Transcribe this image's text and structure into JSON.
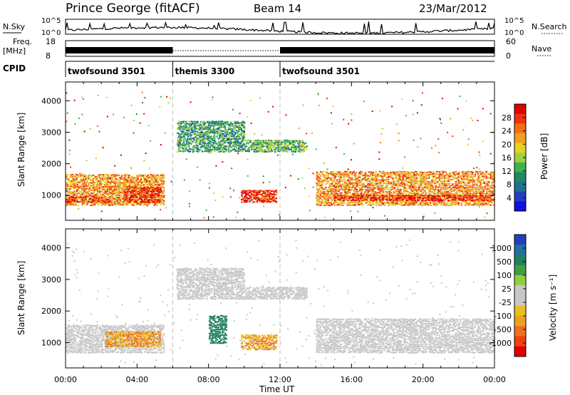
{
  "header": {
    "station": "Prince George (fitACF)",
    "beam": "Beam 14",
    "date": "23/Mar/2012"
  },
  "strip_labels": {
    "nsky": "N.Sky",
    "nsky_ticks": [
      "10^5",
      "10^0"
    ],
    "nsearch": "N.Search",
    "nsearch_ticks": [
      "10^5",
      "10^0"
    ],
    "freq": [
      "Freq.",
      "[MHz]"
    ],
    "freq_ticks": [
      "18",
      "8"
    ],
    "nave": "Nave",
    "nave_ticks": [
      "60",
      "0"
    ],
    "cpid": "CPID"
  },
  "cpid_segments": [
    {
      "label": "twofsound 3501",
      "start": 0,
      "end": 6
    },
    {
      "label": "themis 3300",
      "start": 6,
      "end": 12
    },
    {
      "label": "twofsound 3501",
      "start": 12,
      "end": 24
    }
  ],
  "power_colorbar": {
    "label": "Power [dB]",
    "ticks": [
      "28",
      "24",
      "20",
      "16",
      "12",
      "8",
      "4"
    ],
    "colors": [
      "#e00000",
      "#f03010",
      "#f07010",
      "#f0a020",
      "#e8d020",
      "#a0d040",
      "#40b050",
      "#208860",
      "#207090",
      "#2040c0",
      "#1010e0"
    ]
  },
  "velocity_colorbar": {
    "label": "Velocity [m s⁻¹]",
    "ticks": [
      "1000",
      "500",
      "100",
      "25",
      "-25",
      "-100",
      "-500",
      "-1000"
    ],
    "colors": [
      "#2040c0",
      "#2070a0",
      "#208060",
      "#40a040",
      "#90d040",
      "#c8c8c8",
      "#c8c8c8",
      "#e8c020",
      "#f0a020",
      "#f07020",
      "#f04010",
      "#e00000"
    ]
  },
  "chart_data": [
    {
      "type": "heatmap",
      "title": "",
      "xlabel": "Time UT",
      "ylabel": "Slant Range [km]",
      "xlim": [
        0,
        24
      ],
      "ylim": [
        200,
        4600
      ],
      "x_ticks": [
        "00:00",
        "04:00",
        "08:00",
        "12:00",
        "16:00",
        "20:00",
        "00:00"
      ],
      "y_ticks": [
        1000,
        2000,
        3000,
        4000
      ],
      "quantity": "Power [dB]",
      "regions": [
        {
          "x": [
            0,
            5.5
          ],
          "y": [
            700,
            1700
          ],
          "value": 22
        },
        {
          "x": [
            3.2,
            5.3
          ],
          "y": [
            800,
            1300
          ],
          "value": 28
        },
        {
          "x": [
            0,
            2.5
          ],
          "y": [
            800,
            1000
          ],
          "value": 28
        },
        {
          "x": [
            6.2,
            10
          ],
          "y": [
            2400,
            3400
          ],
          "value": 10
        },
        {
          "x": [
            10,
            13.5
          ],
          "y": [
            2400,
            2800
          ],
          "value": 12
        },
        {
          "x": [
            9.8,
            11.8
          ],
          "y": [
            800,
            1200
          ],
          "value": 28
        },
        {
          "x": [
            14,
            24
          ],
          "y": [
            700,
            1800
          ],
          "value": 22
        },
        {
          "x": [
            15,
            24
          ],
          "y": [
            850,
            1050
          ],
          "value": 28
        }
      ]
    },
    {
      "type": "heatmap",
      "title": "",
      "xlabel": "Time UT",
      "ylabel": "Slant Range [km]",
      "xlim": [
        0,
        24
      ],
      "ylim": [
        200,
        4600
      ],
      "x_ticks": [
        "00:00",
        "04:00",
        "08:00",
        "12:00",
        "16:00",
        "20:00",
        "00:00"
      ],
      "y_ticks": [
        1000,
        2000,
        3000,
        4000
      ],
      "quantity": "Velocity [m s-1]",
      "regions": [
        {
          "x": [
            0,
            5.5
          ],
          "y": [
            700,
            1600
          ],
          "value": 0
        },
        {
          "x": [
            2.2,
            5.3
          ],
          "y": [
            900,
            1400
          ],
          "value": -100
        },
        {
          "x": [
            6.2,
            10
          ],
          "y": [
            2400,
            3400
          ],
          "value": 0
        },
        {
          "x": [
            10,
            13.5
          ],
          "y": [
            2400,
            2800
          ],
          "value": 0
        },
        {
          "x": [
            8.0,
            9.0
          ],
          "y": [
            1000,
            1900
          ],
          "value": 200
        },
        {
          "x": [
            9.8,
            11.8
          ],
          "y": [
            800,
            1300
          ],
          "value": -100
        },
        {
          "x": [
            14,
            24
          ],
          "y": [
            700,
            1800
          ],
          "value": 0
        }
      ]
    }
  ],
  "colors": {
    "scatter_white_gap": "#ffffff",
    "mode_divider": "#c0c0c0"
  }
}
